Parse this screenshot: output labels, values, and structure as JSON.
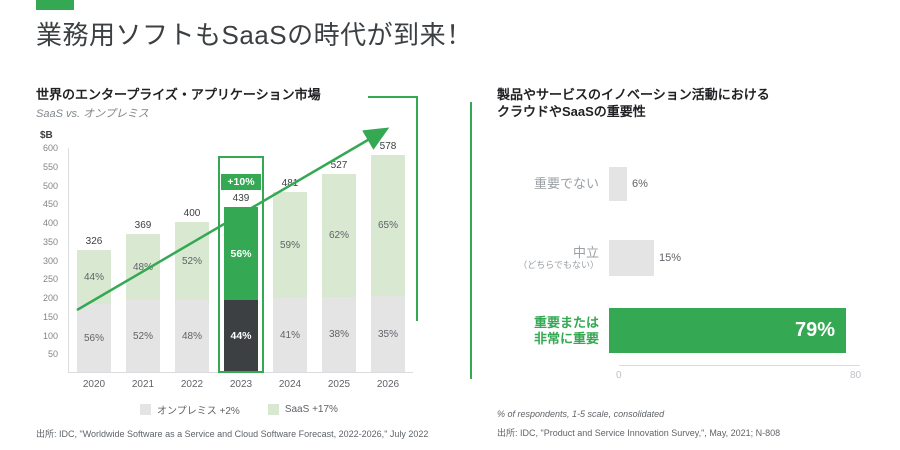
{
  "colors": {
    "green": "#34a853",
    "light_green": "#d9e8d0",
    "gray_bar": "#e4e4e4",
    "dark": "#3c4043"
  },
  "header": {
    "title": "業務用ソフトもSaaSの時代が到来！"
  },
  "left_panel": {
    "title": "世界のエンタープライズ・アプリケーション市場",
    "subtitle": "SaaS vs. オンプレミス",
    "legend": [
      {
        "name": "オンプレミス +2%",
        "swatch": "#e4e4e4"
      },
      {
        "name": "SaaS +17%",
        "swatch": "#d9e8d0"
      }
    ],
    "source": "出所: IDC, \"Worldwide Software as a Service and Cloud Software Forecast, 2022-2026,\" July 2022"
  },
  "right_panel": {
    "title_line1": "製品やサービスのイノベーション活動における",
    "title_line2": "クラウドやSaaSの重要性",
    "note": "% of respondents, 1-5 scale, consolidated",
    "source": "出所: IDC, \"Product and Service Innovation Survey,\", May, 2021; N-808"
  },
  "chart_data": [
    {
      "type": "bar",
      "stacked": true,
      "title": "世界のエンタープライズ・アプリケーション市場",
      "subtitle": "SaaS vs. オンプレミス",
      "ylabel": "$B",
      "ylim": [
        0,
        600
      ],
      "y_ticks": [
        50,
        100,
        150,
        200,
        250,
        300,
        350,
        400,
        450,
        500,
        550,
        600
      ],
      "categories": [
        "2020",
        "2021",
        "2022",
        "2023",
        "2024",
        "2025",
        "2026"
      ],
      "totals": [
        326,
        369,
        400,
        439,
        481,
        527,
        578
      ],
      "series": [
        {
          "name": "オンプレミス",
          "growth": "+2%",
          "percents": [
            56,
            52,
            48,
            44,
            41,
            38,
            35
          ]
        },
        {
          "name": "SaaS",
          "growth": "+17%",
          "percents": [
            44,
            48,
            52,
            56,
            59,
            62,
            65
          ]
        }
      ],
      "highlight": {
        "category": "2023",
        "label": "+10%"
      },
      "legend_position": "bottom",
      "grid": false
    },
    {
      "type": "bar",
      "orientation": "horizontal",
      "title": "製品やサービスのイノベーション活動におけるクラウドやSaaSの重要性",
      "categories": [
        "重要でない",
        "中立（どちらでもない）",
        "重要または非常に重要"
      ],
      "values": [
        6,
        15,
        79
      ],
      "value_labels": [
        "6%",
        "15%",
        "79%"
      ],
      "xlim": [
        0,
        80
      ],
      "x_ticks": [
        0,
        80
      ],
      "grid": false,
      "rows": [
        {
          "label_lines": [
            "重要でない"
          ],
          "value": 6,
          "value_label": "6%",
          "emphasis": false
        },
        {
          "label_lines": [
            "中立",
            "（どちらでもない）"
          ],
          "value": 15,
          "value_label": "15%",
          "emphasis": false
        },
        {
          "label_lines": [
            "重要または",
            "非常に重要"
          ],
          "value": 79,
          "value_label": "79%",
          "emphasis": true
        }
      ]
    }
  ]
}
